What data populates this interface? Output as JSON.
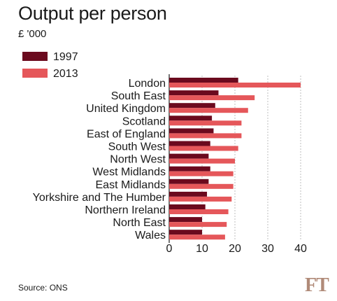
{
  "colors": {
    "series_1997": "#6b0a1e",
    "series_2013": "#e5575a",
    "grid": "#bdbdbd",
    "ft_logo": "#b08a78"
  },
  "source": "Source: ONS",
  "logo_text": "FT",
  "chart_data": {
    "type": "bar",
    "orientation": "horizontal",
    "title": "Output per person",
    "unit": "£ '000",
    "xlabel": "",
    "ylabel": "",
    "xlim": [
      0,
      40
    ],
    "xticks": [
      0,
      10,
      20,
      30,
      40
    ],
    "grid": true,
    "legend": "top-left",
    "categories": [
      "London",
      "South East",
      "United Kingdom",
      "Scotland",
      "East of England",
      "South West",
      "North West",
      "West Midlands",
      "East Midlands",
      "Yorkshire and The Humber",
      "Northern Ireland",
      "North East",
      "Wales"
    ],
    "series": [
      {
        "name": "1997",
        "values": [
          21,
          15,
          14,
          13,
          13.5,
          12.5,
          12,
          12.5,
          12,
          11.5,
          11,
          10,
          10
        ]
      },
      {
        "name": "2013",
        "values": [
          40,
          26,
          24,
          22,
          22,
          21,
          20,
          19.5,
          19.5,
          19,
          18,
          17.5,
          17
        ]
      }
    ]
  }
}
